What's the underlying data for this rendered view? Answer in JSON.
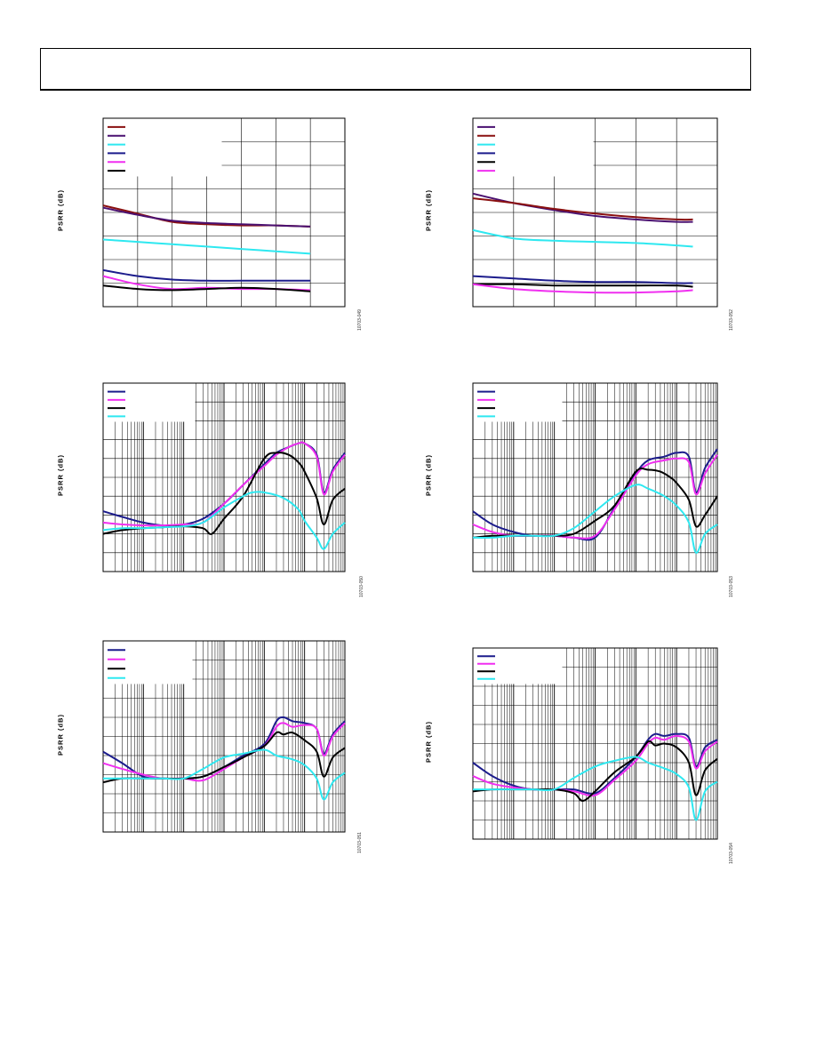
{
  "header": {
    "text": ""
  },
  "colors": {
    "navy": "#1c1c8c",
    "magenta": "#f02ff0",
    "black": "#000000",
    "cyan": "#2ee8f0",
    "purple": "#4a1070",
    "maroon": "#8a1010"
  },
  "chart_data": [
    {
      "id": "fig1",
      "type": "line",
      "ylabel": "PSRR (dB)",
      "fignum": "10703-049",
      "xscale": "linear",
      "grid": true,
      "legend": "top-left",
      "xlim": [
        0,
        7
      ],
      "ylim": [
        0,
        8
      ],
      "xdiv": 7,
      "ydiv": 8,
      "series": [
        {
          "color": "maroon",
          "x": [
            0,
            1,
            2,
            3,
            4,
            5,
            6
          ],
          "y": [
            4.3,
            3.95,
            3.6,
            3.5,
            3.45,
            3.45,
            3.4
          ]
        },
        {
          "color": "purple",
          "x": [
            0,
            1,
            2,
            3,
            4,
            5,
            6
          ],
          "y": [
            4.2,
            3.9,
            3.65,
            3.55,
            3.5,
            3.45,
            3.4
          ]
        },
        {
          "color": "cyan",
          "x": [
            0,
            1,
            2,
            3,
            4,
            5,
            6
          ],
          "y": [
            2.85,
            2.75,
            2.65,
            2.55,
            2.45,
            2.35,
            2.25
          ]
        },
        {
          "color": "navy",
          "x": [
            0,
            1,
            2,
            3,
            4,
            5,
            6
          ],
          "y": [
            1.55,
            1.3,
            1.15,
            1.1,
            1.1,
            1.1,
            1.1
          ]
        },
        {
          "color": "magenta",
          "x": [
            0,
            1,
            2,
            3,
            4,
            5,
            6
          ],
          "y": [
            1.3,
            0.95,
            0.75,
            0.8,
            0.75,
            0.75,
            0.7
          ]
        },
        {
          "color": "black",
          "x": [
            0,
            1,
            2,
            3,
            4,
            5,
            6
          ],
          "y": [
            0.9,
            0.75,
            0.7,
            0.75,
            0.8,
            0.75,
            0.65
          ]
        }
      ]
    },
    {
      "id": "fig2",
      "type": "line",
      "ylabel": "PSRR (dB)",
      "fignum": "10703-052",
      "xscale": "linear",
      "grid": true,
      "legend": "top-left",
      "xlim": [
        0,
        6
      ],
      "ylim": [
        0,
        8
      ],
      "xdiv": 6,
      "ydiv": 8,
      "series": [
        {
          "color": "purple",
          "x": [
            0,
            1,
            2,
            3,
            4,
            5,
            5.4
          ],
          "y": [
            4.8,
            4.4,
            4.1,
            3.85,
            3.7,
            3.6,
            3.6
          ]
        },
        {
          "color": "maroon",
          "x": [
            0,
            1,
            2,
            3,
            4,
            5,
            5.4
          ],
          "y": [
            4.6,
            4.4,
            4.15,
            3.95,
            3.8,
            3.7,
            3.7
          ]
        },
        {
          "color": "cyan",
          "x": [
            0,
            1,
            2,
            3,
            4,
            5,
            5.4
          ],
          "y": [
            3.25,
            2.9,
            2.8,
            2.75,
            2.7,
            2.6,
            2.55
          ]
        },
        {
          "color": "navy",
          "x": [
            0,
            1,
            2,
            3,
            4,
            5,
            5.4
          ],
          "y": [
            1.3,
            1.2,
            1.1,
            1.05,
            1.05,
            1.0,
            1.0
          ]
        },
        {
          "color": "black",
          "x": [
            0,
            1,
            2,
            3,
            4,
            5,
            5.4
          ],
          "y": [
            0.95,
            0.95,
            0.9,
            0.9,
            0.9,
            0.9,
            0.85
          ]
        },
        {
          "color": "magenta",
          "x": [
            0,
            1,
            2,
            3,
            4,
            5,
            5.4
          ],
          "y": [
            0.95,
            0.75,
            0.65,
            0.6,
            0.6,
            0.65,
            0.7
          ]
        }
      ]
    },
    {
      "id": "fig3",
      "type": "line",
      "ylabel": "PSRR (dB)",
      "fignum": "10703-050",
      "xscale": "log",
      "grid": true,
      "legend": "top-left",
      "xlim": [
        10,
        10000000
      ],
      "ylim": [
        0,
        10
      ],
      "ydiv": 10,
      "series": [
        {
          "color": "navy",
          "x": [
            10,
            30,
            100,
            300,
            1000,
            3000,
            10000,
            30000,
            100000,
            200000,
            400000,
            700000,
            1000000,
            2000000,
            3000000,
            5000000,
            10000000
          ],
          "y": [
            3.2,
            2.9,
            2.6,
            2.45,
            2.5,
            2.8,
            3.6,
            4.6,
            5.7,
            6.3,
            6.6,
            6.8,
            6.8,
            6.2,
            4.2,
            5.4,
            6.3
          ]
        },
        {
          "color": "magenta",
          "x": [
            10,
            30,
            100,
            300,
            1000,
            3000,
            10000,
            30000,
            100000,
            200000,
            400000,
            700000,
            1000000,
            2000000,
            3000000,
            5000000,
            10000000
          ],
          "y": [
            2.6,
            2.5,
            2.45,
            2.45,
            2.5,
            2.6,
            3.6,
            4.6,
            5.6,
            6.2,
            6.6,
            6.8,
            6.8,
            6.1,
            4.1,
            5.3,
            6.2
          ]
        },
        {
          "color": "black",
          "x": [
            10,
            30,
            100,
            300,
            1000,
            3000,
            5000,
            10000,
            30000,
            100000,
            200000,
            400000,
            700000,
            1000000,
            2000000,
            3000000,
            5000000,
            10000000
          ],
          "y": [
            2.0,
            2.2,
            2.3,
            2.35,
            2.4,
            2.3,
            2.0,
            2.8,
            4.0,
            6.0,
            6.3,
            6.2,
            5.8,
            5.3,
            3.9,
            2.5,
            3.8,
            4.4
          ]
        },
        {
          "color": "cyan",
          "x": [
            10,
            30,
            100,
            300,
            1000,
            3000,
            10000,
            30000,
            50000,
            100000,
            300000,
            700000,
            1000000,
            2000000,
            3000000,
            5000000,
            10000000
          ],
          "y": [
            2.2,
            2.3,
            2.3,
            2.35,
            2.4,
            2.6,
            3.4,
            4.0,
            4.2,
            4.2,
            3.9,
            3.3,
            2.7,
            1.8,
            1.2,
            2.0,
            2.6
          ]
        }
      ]
    },
    {
      "id": "fig4",
      "type": "line",
      "ylabel": "PSRR (dB)",
      "fignum": "10703-053",
      "xscale": "log",
      "grid": true,
      "legend": "top-left",
      "xlim": [
        10,
        10000000
      ],
      "ylim": [
        0,
        10
      ],
      "ydiv": 10,
      "series": [
        {
          "color": "navy",
          "x": [
            10,
            30,
            100,
            300,
            1000,
            3000,
            10000,
            30000,
            100000,
            200000,
            500000,
            1000000,
            2000000,
            3000000,
            5000000,
            10000000
          ],
          "y": [
            3.2,
            2.5,
            2.1,
            1.9,
            1.9,
            1.8,
            1.8,
            3.4,
            5.2,
            5.9,
            6.1,
            6.3,
            6.1,
            4.2,
            5.5,
            6.5
          ]
        },
        {
          "color": "magenta",
          "x": [
            10,
            30,
            100,
            300,
            1000,
            3000,
            10000,
            30000,
            100000,
            200000,
            500000,
            1000000,
            2000000,
            3000000,
            5000000,
            10000000
          ],
          "y": [
            2.5,
            2.1,
            1.9,
            1.9,
            1.9,
            1.8,
            1.9,
            3.3,
            5.1,
            5.7,
            5.9,
            6.0,
            5.8,
            4.1,
            5.2,
            6.2
          ]
        },
        {
          "color": "black",
          "x": [
            10,
            30,
            100,
            300,
            1000,
            3000,
            10000,
            30000,
            100000,
            200000,
            400000,
            700000,
            1000000,
            2000000,
            3000000,
            5000000,
            10000000
          ],
          "y": [
            1.8,
            1.9,
            1.9,
            1.9,
            1.9,
            2.0,
            2.7,
            3.5,
            5.3,
            5.4,
            5.3,
            5.0,
            4.7,
            3.8,
            2.4,
            3.0,
            4.0
          ]
        },
        {
          "color": "cyan",
          "x": [
            10,
            30,
            100,
            300,
            1000,
            3000,
            10000,
            30000,
            100000,
            200000,
            500000,
            1000000,
            2000000,
            3000000,
            5000000,
            10000000
          ],
          "y": [
            1.8,
            1.8,
            1.9,
            1.9,
            1.9,
            2.3,
            3.2,
            4.0,
            4.6,
            4.4,
            4.0,
            3.5,
            2.6,
            1.0,
            2.0,
            2.5
          ]
        }
      ]
    },
    {
      "id": "fig5",
      "type": "line",
      "ylabel": "PSRR (dB)",
      "fignum": "10703-051",
      "xscale": "log",
      "grid": true,
      "legend": "top-left",
      "xlim": [
        10,
        10000000
      ],
      "ylim": [
        0,
        10
      ],
      "ydiv": 10,
      "series": [
        {
          "color": "navy",
          "x": [
            10,
            30,
            100,
            300,
            1000,
            3000,
            10000,
            30000,
            100000,
            200000,
            300000,
            500000,
            1000000,
            2000000,
            3000000,
            5000000,
            10000000
          ],
          "y": [
            4.2,
            3.6,
            2.9,
            2.8,
            2.8,
            2.9,
            3.4,
            4.0,
            4.6,
            5.8,
            6.0,
            5.8,
            5.7,
            5.4,
            4.1,
            5.1,
            5.8
          ]
        },
        {
          "color": "magenta",
          "x": [
            10,
            30,
            100,
            300,
            1000,
            3000,
            10000,
            30000,
            100000,
            200000,
            300000,
            500000,
            1000000,
            2000000,
            3000000,
            5000000,
            10000000
          ],
          "y": [
            3.6,
            3.3,
            3.0,
            2.8,
            2.8,
            2.7,
            3.3,
            3.9,
            4.5,
            5.5,
            5.7,
            5.5,
            5.6,
            5.4,
            4.0,
            5.0,
            5.7
          ]
        },
        {
          "color": "black",
          "x": [
            10,
            30,
            100,
            300,
            1000,
            3000,
            10000,
            30000,
            100000,
            200000,
            300000,
            500000,
            1000000,
            2000000,
            3000000,
            5000000,
            10000000
          ],
          "y": [
            2.6,
            2.8,
            2.8,
            2.8,
            2.8,
            2.9,
            3.4,
            3.9,
            4.5,
            5.2,
            5.1,
            5.2,
            4.8,
            4.2,
            2.9,
            3.9,
            4.4
          ]
        },
        {
          "color": "cyan",
          "x": [
            10,
            30,
            100,
            300,
            1000,
            3000,
            10000,
            30000,
            100000,
            200000,
            500000,
            1000000,
            2000000,
            3000000,
            5000000,
            10000000
          ],
          "y": [
            2.8,
            2.8,
            2.8,
            2.8,
            2.8,
            3.3,
            3.9,
            4.1,
            4.3,
            4.0,
            3.8,
            3.5,
            2.8,
            1.7,
            2.6,
            3.1
          ]
        }
      ]
    },
    {
      "id": "fig6",
      "type": "line",
      "ylabel": "PSRR (dB)",
      "fignum": "10703-054",
      "xscale": "log",
      "grid": true,
      "legend": "top-left",
      "xlim": [
        10,
        10000000
      ],
      "ylim": [
        0,
        10
      ],
      "ydiv": 10,
      "series": [
        {
          "color": "navy",
          "x": [
            10,
            30,
            100,
            300,
            1000,
            3000,
            10000,
            30000,
            100000,
            200000,
            300000,
            500000,
            1000000,
            2000000,
            3000000,
            5000000,
            10000000
          ],
          "y": [
            4.0,
            3.3,
            2.8,
            2.6,
            2.6,
            2.6,
            2.4,
            3.2,
            4.3,
            5.2,
            5.5,
            5.4,
            5.5,
            5.3,
            3.8,
            4.8,
            5.2
          ]
        },
        {
          "color": "magenta",
          "x": [
            10,
            30,
            100,
            300,
            1000,
            3000,
            10000,
            30000,
            100000,
            200000,
            300000,
            500000,
            1000000,
            2000000,
            3000000,
            5000000,
            10000000
          ],
          "y": [
            3.3,
            2.9,
            2.7,
            2.6,
            2.6,
            2.5,
            2.3,
            3.1,
            4.1,
            5.0,
            5.3,
            5.2,
            5.4,
            5.1,
            3.7,
            4.6,
            5.1
          ]
        },
        {
          "color": "black",
          "x": [
            10,
            30,
            100,
            300,
            1000,
            3000,
            5000,
            10000,
            30000,
            100000,
            200000,
            300000,
            500000,
            1000000,
            2000000,
            3000000,
            5000000,
            10000000
          ],
          "y": [
            2.5,
            2.6,
            2.6,
            2.6,
            2.6,
            2.4,
            2.0,
            2.5,
            3.5,
            4.3,
            5.1,
            4.9,
            5.0,
            4.8,
            4.0,
            2.3,
            3.6,
            4.2
          ]
        },
        {
          "color": "cyan",
          "x": [
            10,
            30,
            100,
            300,
            1000,
            3000,
            10000,
            30000,
            100000,
            200000,
            500000,
            1000000,
            2000000,
            3000000,
            5000000,
            10000000
          ],
          "y": [
            2.6,
            2.6,
            2.6,
            2.6,
            2.6,
            3.2,
            3.8,
            4.1,
            4.3,
            4.0,
            3.7,
            3.4,
            2.7,
            1.0,
            2.5,
            3.0
          ]
        }
      ]
    }
  ]
}
